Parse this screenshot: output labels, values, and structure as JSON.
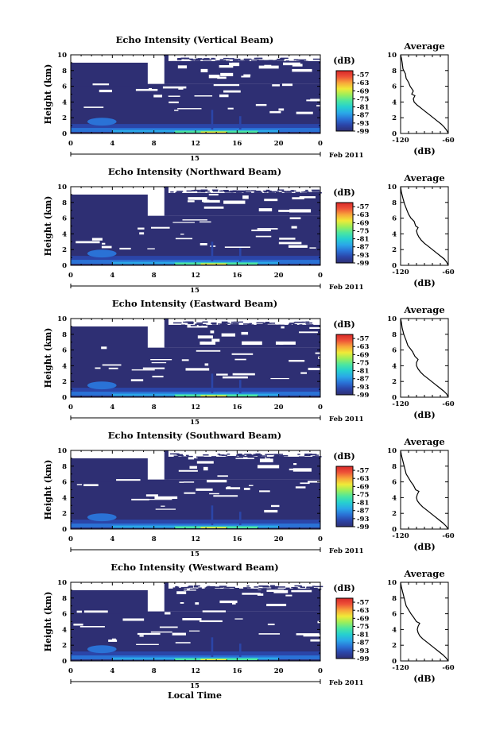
{
  "chart_data": {
    "type": "heatmap",
    "colorbar": {
      "unit_label": "(dB)",
      "ticks": [
        "-57",
        "-63",
        "-69",
        "-75",
        "-81",
        "-87",
        "-93",
        "-99"
      ],
      "value_range": [
        -99,
        -54
      ],
      "colors": [
        "#2e2f73",
        "#2b45a8",
        "#2a72d6",
        "#2aa8e8",
        "#26d0d0",
        "#4ce6a0",
        "#9cee5a",
        "#f0ea38",
        "#f8a63a",
        "#ee5238",
        "#d82828"
      ]
    },
    "x_axis": {
      "ticks": [
        "0",
        "4",
        "8",
        "12",
        "16",
        "20",
        "0"
      ],
      "range": [
        0,
        24
      ],
      "date_label": "15",
      "month_label": "Feb 2011",
      "label": "Local Time"
    },
    "y_axis": {
      "label": "Height (km)",
      "ticks": [
        "0",
        "2",
        "4",
        "6",
        "8",
        "10"
      ],
      "range": [
        0,
        10
      ]
    },
    "profile": {
      "title": "Average",
      "xlabel": "(dB)",
      "x_ticks": [
        "-120",
        "-60"
      ],
      "x_range": [
        -120,
        -60
      ],
      "y_ticks": [
        "0",
        "2",
        "4",
        "6",
        "8",
        "10"
      ],
      "y_range": [
        0,
        10
      ]
    },
    "panels": [
      {
        "title": "Echo Intensity (Vertical Beam)",
        "profile_points": [
          [
            -60,
            0
          ],
          [
            -62,
            0.4
          ],
          [
            -65,
            0.8
          ],
          [
            -69,
            1.2
          ],
          [
            -74,
            1.6
          ],
          [
            -79,
            2.0
          ],
          [
            -84,
            2.4
          ],
          [
            -89,
            2.8
          ],
          [
            -94,
            3.2
          ],
          [
            -99,
            3.6
          ],
          [
            -103,
            4.0
          ],
          [
            -104,
            4.4
          ],
          [
            -102,
            4.8
          ],
          [
            -106,
            5.0
          ],
          [
            -104,
            5.4
          ],
          [
            -108,
            6.0
          ],
          [
            -110,
            6.5
          ],
          [
            -113,
            7.0
          ],
          [
            -114,
            7.6
          ],
          [
            -117,
            8.2
          ],
          [
            -118,
            9.0
          ],
          [
            -119,
            9.6
          ],
          [
            -120,
            10
          ]
        ]
      },
      {
        "title": "Echo Intensity (Northward Beam)",
        "profile_points": [
          [
            -60,
            0
          ],
          [
            -62,
            0.4
          ],
          [
            -65,
            0.8
          ],
          [
            -70,
            1.2
          ],
          [
            -75,
            1.6
          ],
          [
            -80,
            2.0
          ],
          [
            -85,
            2.4
          ],
          [
            -90,
            2.8
          ],
          [
            -94,
            3.2
          ],
          [
            -97,
            3.6
          ],
          [
            -99,
            4.0
          ],
          [
            -100,
            4.4
          ],
          [
            -98,
            4.8
          ],
          [
            -101,
            5.0
          ],
          [
            -103,
            5.6
          ],
          [
            -107,
            6.0
          ],
          [
            -110,
            6.5
          ],
          [
            -112,
            7.0
          ],
          [
            -115,
            7.8
          ],
          [
            -117,
            8.5
          ],
          [
            -119,
            9.3
          ],
          [
            -120,
            10
          ]
        ]
      },
      {
        "title": "Echo Intensity (Eastward Beam)",
        "profile_points": [
          [
            -60,
            0
          ],
          [
            -62,
            0.4
          ],
          [
            -66,
            0.8
          ],
          [
            -71,
            1.2
          ],
          [
            -76,
            1.6
          ],
          [
            -81,
            2.0
          ],
          [
            -86,
            2.4
          ],
          [
            -91,
            2.8
          ],
          [
            -95,
            3.2
          ],
          [
            -98,
            3.6
          ],
          [
            -100,
            4.0
          ],
          [
            -100,
            4.4
          ],
          [
            -98,
            4.8
          ],
          [
            -102,
            5.2
          ],
          [
            -105,
            5.8
          ],
          [
            -108,
            6.2
          ],
          [
            -111,
            6.6
          ],
          [
            -113,
            7.2
          ],
          [
            -116,
            8.0
          ],
          [
            -118,
            8.8
          ],
          [
            -119,
            9.5
          ],
          [
            -120,
            10
          ]
        ]
      },
      {
        "title": "Echo Intensity (Southward Beam)",
        "profile_points": [
          [
            -60,
            0
          ],
          [
            -63,
            0.4
          ],
          [
            -67,
            0.8
          ],
          [
            -72,
            1.2
          ],
          [
            -77,
            1.6
          ],
          [
            -82,
            2.0
          ],
          [
            -87,
            2.4
          ],
          [
            -92,
            2.8
          ],
          [
            -96,
            3.2
          ],
          [
            -99,
            3.6
          ],
          [
            -100,
            4.0
          ],
          [
            -99,
            4.4
          ],
          [
            -97,
            4.8
          ],
          [
            -101,
            5.0
          ],
          [
            -104,
            5.6
          ],
          [
            -107,
            6.0
          ],
          [
            -110,
            6.5
          ],
          [
            -113,
            7.0
          ],
          [
            -115,
            7.8
          ],
          [
            -117,
            8.6
          ],
          [
            -119,
            9.4
          ],
          [
            -120,
            10
          ]
        ]
      },
      {
        "title": "Echo Intensity (Westward Beam)",
        "profile_points": [
          [
            -60,
            0
          ],
          [
            -63,
            0.4
          ],
          [
            -67,
            0.8
          ],
          [
            -72,
            1.2
          ],
          [
            -77,
            1.6
          ],
          [
            -82,
            2.0
          ],
          [
            -87,
            2.4
          ],
          [
            -92,
            2.8
          ],
          [
            -96,
            3.2
          ],
          [
            -98,
            3.6
          ],
          [
            -99,
            4.0
          ],
          [
            -98,
            4.4
          ],
          [
            -96,
            4.8
          ],
          [
            -100,
            5.0
          ],
          [
            -104,
            5.6
          ],
          [
            -107,
            6.0
          ],
          [
            -110,
            6.5
          ],
          [
            -113,
            7.0
          ],
          [
            -115,
            7.8
          ],
          [
            -117,
            8.6
          ],
          [
            -119,
            9.4
          ],
          [
            -120,
            10
          ]
        ]
      }
    ]
  }
}
